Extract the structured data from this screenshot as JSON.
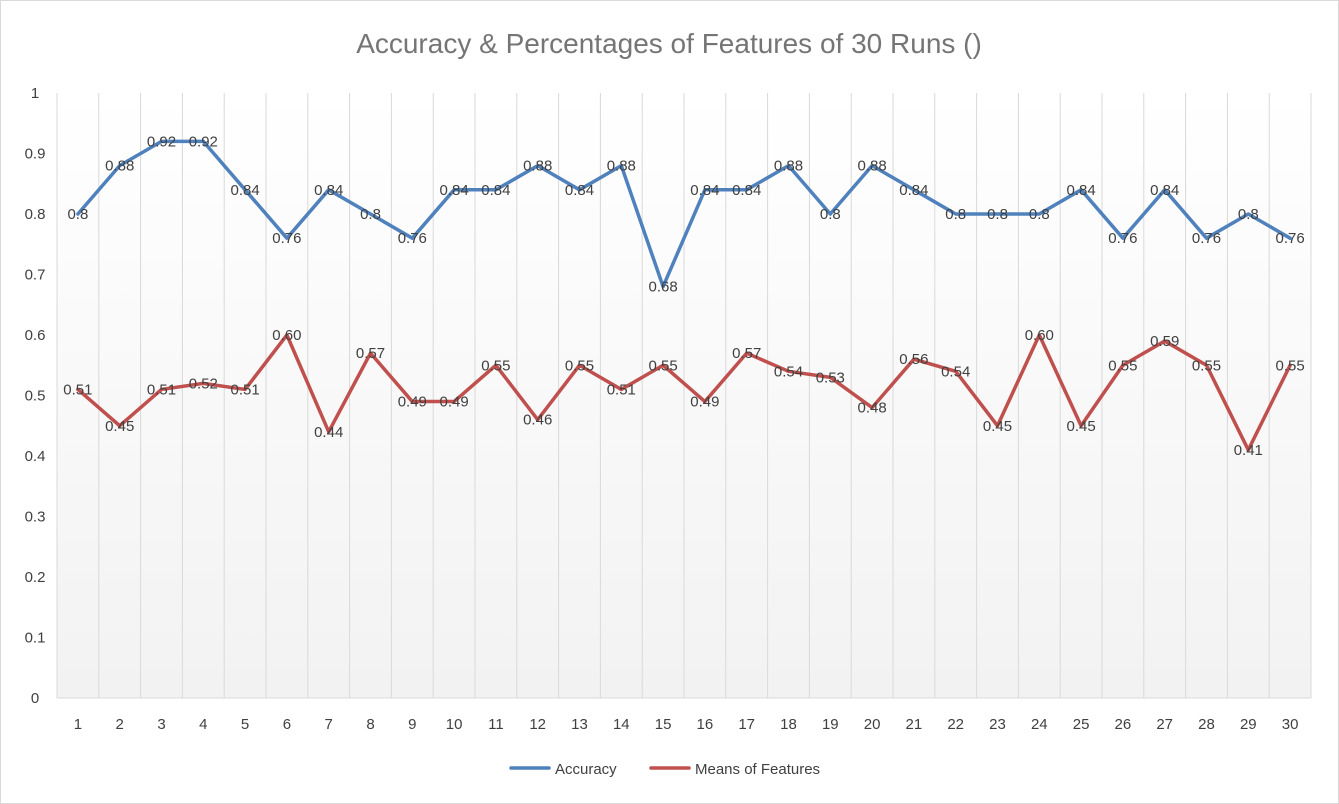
{
  "chart_data": {
    "type": "line",
    "title": "Accuracy & Percentages of Features of 30 Runs ()",
    "xlabel": "",
    "ylabel": "",
    "ylim": [
      0,
      1
    ],
    "yticks": [
      "0",
      "0.1",
      "0.2",
      "0.3",
      "0.4",
      "0.5",
      "0.6",
      "0.7",
      "0.8",
      "0.9",
      "1"
    ],
    "categories": [
      "1",
      "2",
      "3",
      "4",
      "5",
      "6",
      "7",
      "8",
      "9",
      "10",
      "11",
      "12",
      "13",
      "14",
      "15",
      "16",
      "17",
      "18",
      "19",
      "20",
      "21",
      "22",
      "23",
      "24",
      "25",
      "26",
      "27",
      "28",
      "29",
      "30"
    ],
    "grid": "vertical",
    "legend_position": "bottom",
    "series": [
      {
        "name": "Accuracy",
        "color": "#4f81bd",
        "values": [
          0.8,
          0.88,
          0.92,
          0.92,
          0.84,
          0.76,
          0.84,
          0.8,
          0.76,
          0.84,
          0.84,
          0.88,
          0.84,
          0.88,
          0.68,
          0.84,
          0.84,
          0.88,
          0.8,
          0.88,
          0.84,
          0.8,
          0.8,
          0.8,
          0.84,
          0.76,
          0.84,
          0.76,
          0.8,
          0.76
        ],
        "labels": [
          "0.8",
          "0.88",
          "0.92",
          "0.92",
          "0.84",
          "0.76",
          "0.84",
          "0.8",
          "0.76",
          "0.84",
          "0.84",
          "0.88",
          "0.84",
          "0.88",
          "0.68",
          "0.84",
          "0.84",
          "0.88",
          "0.8",
          "0.88",
          "0.84",
          "0.8",
          "0.8",
          "0.8",
          "0.84",
          "0.76",
          "0.84",
          "0.76",
          "0.8",
          "0.76"
        ]
      },
      {
        "name": "Means of Features",
        "color": "#c0504d",
        "values": [
          0.51,
          0.45,
          0.51,
          0.52,
          0.51,
          0.6,
          0.44,
          0.57,
          0.49,
          0.49,
          0.55,
          0.46,
          0.55,
          0.51,
          0.55,
          0.49,
          0.57,
          0.54,
          0.53,
          0.48,
          0.56,
          0.54,
          0.45,
          0.6,
          0.45,
          0.55,
          0.59,
          0.55,
          0.41,
          0.55
        ],
        "labels": [
          "0.51",
          "0.45",
          "0.51",
          "0.52",
          "0.51",
          "0.60",
          "0.44",
          "0.57",
          "0.49",
          "0.49",
          "0.55",
          "0.46",
          "0.55",
          "0.51",
          "0.55",
          "0.49",
          "0.57",
          "0.54",
          "0.53",
          "0.48",
          "0.56",
          "0.54",
          "0.45",
          "0.60",
          "0.45",
          "0.55",
          "0.59",
          "0.55",
          "0.41",
          "0.55"
        ]
      }
    ]
  }
}
